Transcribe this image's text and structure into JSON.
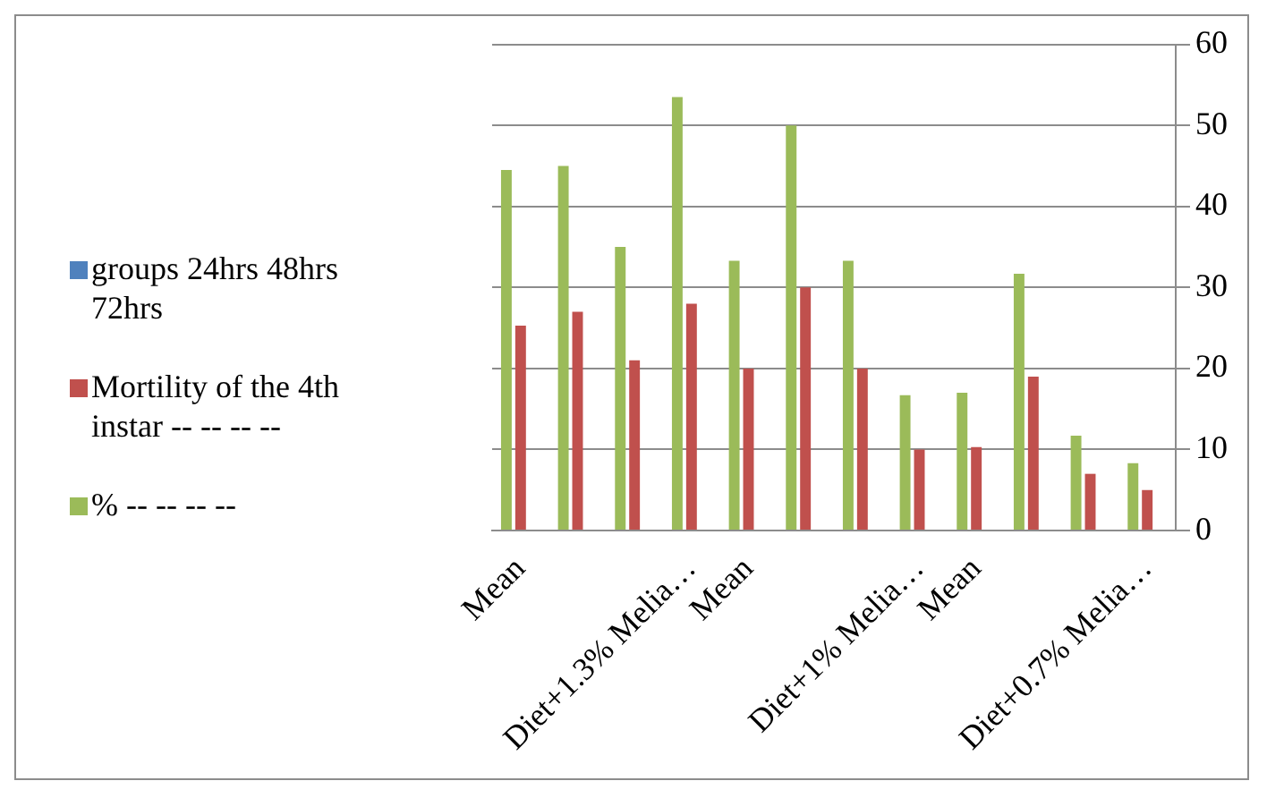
{
  "chart_data": {
    "type": "bar",
    "categories": [
      "Mean",
      null,
      null,
      "Diet+1.3% Melia…",
      "Mean",
      null,
      null,
      "Diet+1% Melia…",
      "Mean",
      null,
      null,
      "Diet+0.7% Melia…"
    ],
    "series": [
      {
        "name": "groups 24hrs 48hrs 72hrs",
        "color": "#4f81bd",
        "values": [
          null,
          null,
          null,
          null,
          null,
          null,
          null,
          null,
          null,
          null,
          null,
          null
        ]
      },
      {
        "name": "Mortility of the 4th instar -- -- -- --",
        "color": "#c0504d",
        "values": [
          25.3,
          27,
          21,
          28,
          20,
          30,
          20,
          10,
          10.3,
          19,
          7,
          5
        ]
      },
      {
        "name": "% -- -- -- --",
        "color": "#9bbb59",
        "values": [
          44.5,
          45,
          35,
          53.5,
          33.3,
          50,
          33.3,
          16.7,
          17,
          31.7,
          11.7,
          8.3
        ]
      }
    ],
    "ylim": [
      0,
      60
    ],
    "yticks": [
      0,
      10,
      20,
      30,
      40,
      50,
      60
    ],
    "grid": "y",
    "legend": "left"
  }
}
